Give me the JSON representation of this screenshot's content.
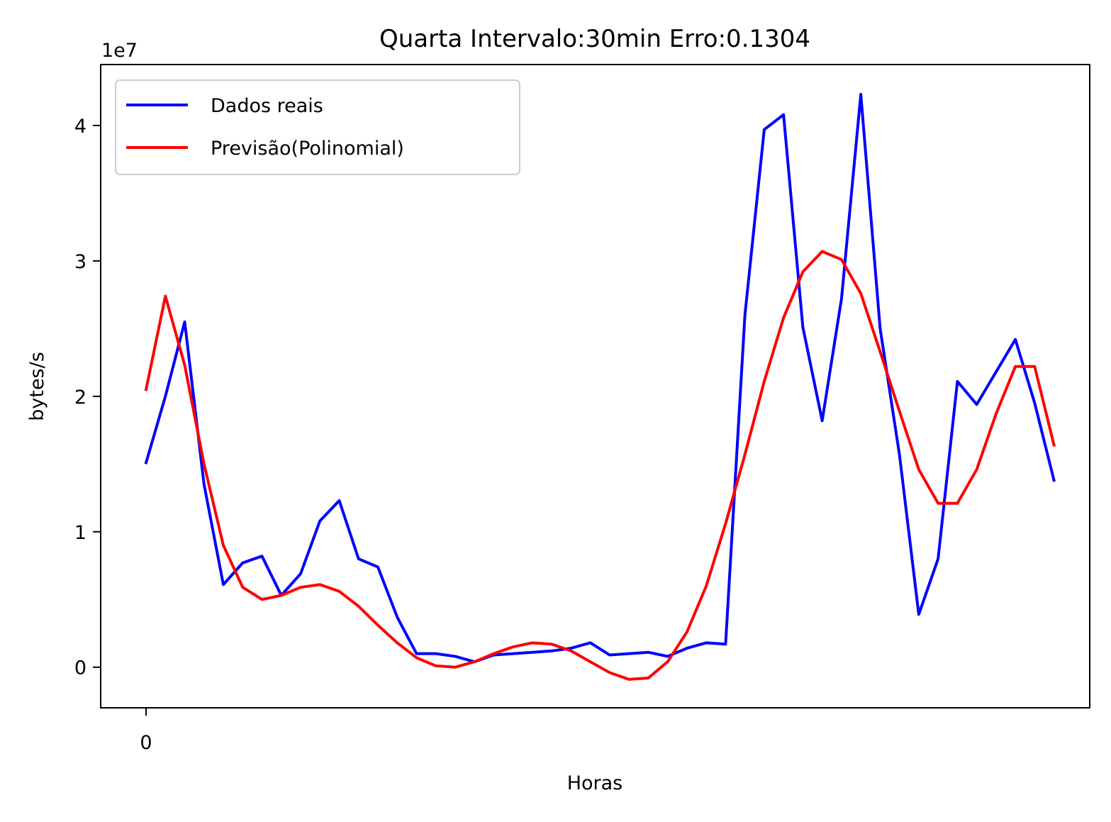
{
  "chart_data": {
    "type": "line",
    "title": "Quarta Intervalo:30min Erro:0.1304",
    "xlabel": "Horas",
    "ylabel": "bytes/s",
    "y_offset_label": "1e7",
    "y_scale_factor": 10000000,
    "x_tick_values": [
      0
    ],
    "x_tick_labels": [
      "0"
    ],
    "y_tick_values": [
      0,
      1,
      2,
      3,
      4
    ],
    "y_tick_labels": [
      "0",
      "1",
      "2",
      "3",
      "4"
    ],
    "xlim": [
      -2.35,
      48.85
    ],
    "ylim": [
      -0.3,
      4.45
    ],
    "grid": false,
    "legend_position": "upper-left",
    "x": [
      0,
      1,
      2,
      3,
      4,
      5,
      6,
      7,
      8,
      9,
      10,
      11,
      12,
      13,
      14,
      15,
      16,
      17,
      18,
      19,
      20,
      21,
      22,
      23,
      24,
      25,
      26,
      27,
      28,
      29,
      30,
      31,
      32,
      33,
      34,
      35,
      36,
      37,
      38,
      39,
      40,
      41,
      42,
      43,
      44,
      45,
      46,
      47
    ],
    "series": [
      {
        "name": "Dados reais",
        "color": "#0000ff",
        "values": [
          1.51,
          2.0,
          2.55,
          1.35,
          0.61,
          0.77,
          0.82,
          0.53,
          0.69,
          1.08,
          1.23,
          0.8,
          0.74,
          0.37,
          0.1,
          0.1,
          0.08,
          0.04,
          0.09,
          0.1,
          0.11,
          0.12,
          0.14,
          0.18,
          0.09,
          0.1,
          0.11,
          0.08,
          0.14,
          0.18,
          0.17,
          2.6,
          3.97,
          4.08,
          2.51,
          1.82,
          2.72,
          4.23,
          2.5,
          1.57,
          0.39,
          0.8,
          2.11,
          1.94,
          2.18,
          2.42,
          1.95,
          1.38
        ]
      },
      {
        "name": "Previsão(Polinomial)",
        "color": "#ff0000",
        "values": [
          2.05,
          2.74,
          2.23,
          1.5,
          0.9,
          0.59,
          0.5,
          0.53,
          0.59,
          0.61,
          0.56,
          0.45,
          0.31,
          0.18,
          0.07,
          0.01,
          0.0,
          0.04,
          0.1,
          0.15,
          0.18,
          0.17,
          0.12,
          0.04,
          -0.04,
          -0.09,
          -0.08,
          0.04,
          0.26,
          0.6,
          1.06,
          1.57,
          2.11,
          2.58,
          2.92,
          3.07,
          3.01,
          2.76,
          2.33,
          1.89,
          1.46,
          1.21,
          1.21,
          1.46,
          1.87,
          2.22,
          2.22,
          1.64
        ]
      }
    ]
  }
}
